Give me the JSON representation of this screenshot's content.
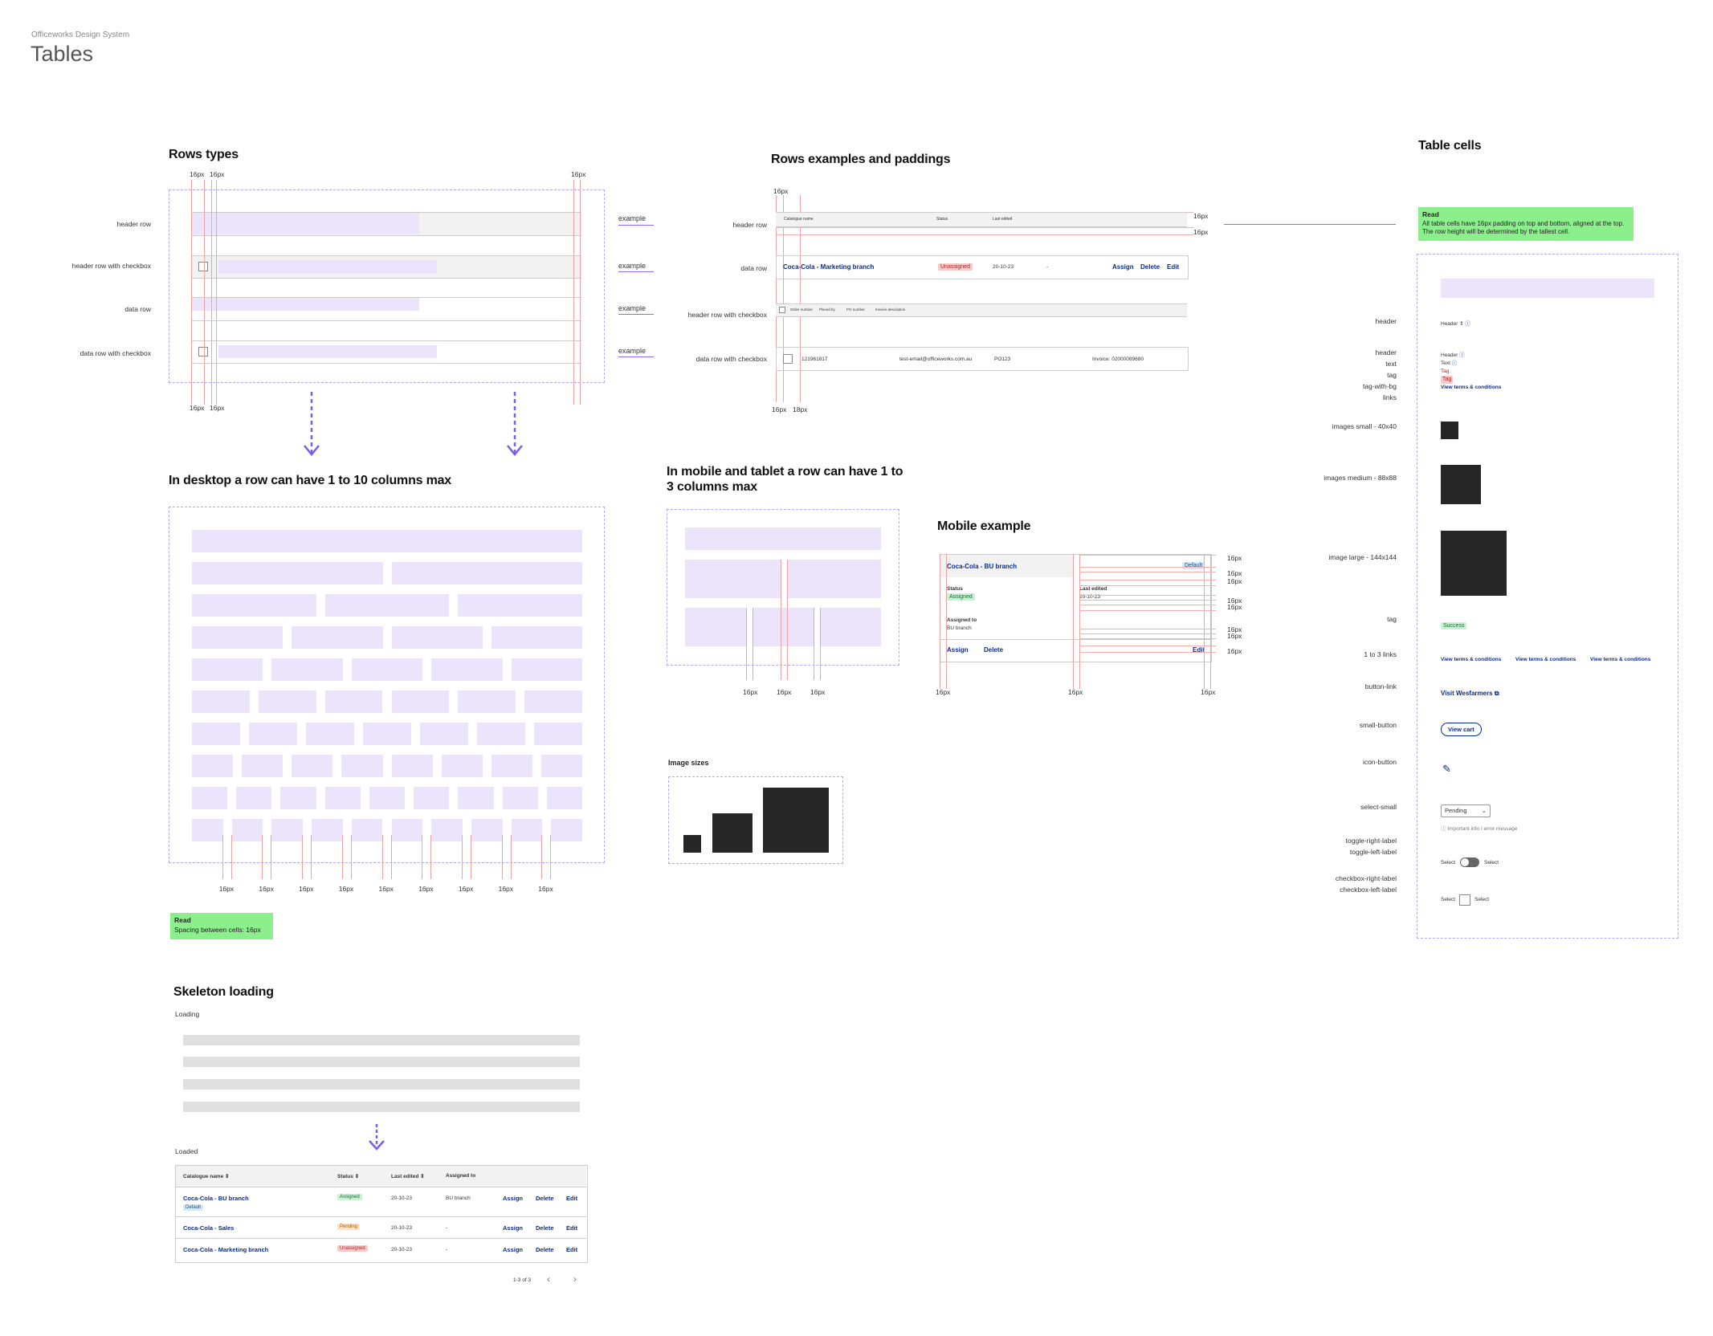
{
  "page": {
    "subtitle": "Officeworks Design System",
    "title": "Tables"
  },
  "rows_types": {
    "title": "Rows types",
    "labels": [
      "header row",
      "header row with checkbox",
      "data row",
      "data row with checkbox"
    ],
    "example": "example",
    "px": "16px"
  },
  "rows_examples": {
    "title": "Rows examples and paddings",
    "labels": [
      "header row",
      "data row",
      "header row with checkbox",
      "data row with checkbox"
    ],
    "header_cols": [
      "Catalogue name",
      "Status",
      "Last edited"
    ],
    "data_row": {
      "name": "Coca-Cola - Marketing branch",
      "status": "Unassigned",
      "date": "20-10-23",
      "assigned": "-",
      "actions": [
        "Assign",
        "Delete",
        "Edit"
      ]
    },
    "header_cb_cols": [
      "Order number",
      "Placed by",
      "PO number",
      "Invoice description"
    ],
    "data_cb_row": {
      "order": "121961817",
      "email": "test-email@officeworks.com.au",
      "po": "PO123",
      "invoice": "Invoice: 02000089680"
    },
    "px": "16px",
    "px18": "18px"
  },
  "desktop": {
    "title": "In desktop a row can have 1 to 10 columns max",
    "px": "16px",
    "note_title": "Read",
    "note_text": "Spacing between cells: 16px"
  },
  "mobile_tablet": {
    "title": "In mobile and tablet a row can have 1 to 3 columns max",
    "px": "16px"
  },
  "image_sizes": {
    "title": "Image sizes"
  },
  "mobile_example": {
    "title": "Mobile example",
    "name": "Coca-Cola - BU branch",
    "default": "Default",
    "status_label": "Status",
    "status": "Assigned",
    "last_label": "Last edited",
    "last": "20-10-23",
    "assigned_label": "Assigned to",
    "assigned": "BU branch",
    "actions": [
      "Assign",
      "Delete",
      "Edit"
    ],
    "px": "16px"
  },
  "table_cells": {
    "title": "Table cells",
    "note_title": "Read",
    "note_text": "All table cells have 16px padding on top and bottom, aligned at the top. The row height will be determined by the tallest cell.",
    "labels": {
      "header": "header",
      "multi": [
        "header",
        "text",
        "tag",
        "tag-with-bg",
        "links"
      ],
      "img_small": "images small - 40x40",
      "img_medium": "images medium - 88x88",
      "img_large": "image large - 144x144",
      "tag": "tag",
      "links": "1 to 3 links",
      "button_link": "button-link",
      "small_button": "small-button",
      "icon_button": "icon-button",
      "select_small": "select-small",
      "toggle": [
        "toggle-right-label",
        "toggle-left-label"
      ],
      "checkbox": [
        "checkbox-right-label",
        "checkbox-left-label"
      ]
    },
    "header_text": "Header",
    "text": "Text",
    "tag": "Tag",
    "tag_bg": "Tag",
    "link": "View terms & conditions",
    "success": "Success",
    "button_link": "Visit Wesfarmers",
    "small_button": "View cart",
    "select_value": "Pending",
    "select_hint": "Important info / error message",
    "select_word": "Select"
  },
  "skeleton": {
    "title": "Skeleton loading",
    "loading": "Loading",
    "loaded": "Loaded",
    "cols": [
      "Catalogue name",
      "Status",
      "Last edited",
      "Assigned to"
    ],
    "rows": [
      {
        "name": "Coca-Cola - BU branch",
        "badge": "Default",
        "status": "Assigned",
        "date": "20-10-23",
        "assigned": "BU branch"
      },
      {
        "name": "Coca-Cola - Sales",
        "status": "Pending",
        "date": "20-10-23",
        "assigned": "-"
      },
      {
        "name": "Coca-Cola - Marketing branch",
        "status": "Unassigned",
        "date": "20-10-23",
        "assigned": "-"
      }
    ],
    "actions": [
      "Assign",
      "Delete",
      "Edit"
    ],
    "pagination": "1-3 of 3"
  }
}
